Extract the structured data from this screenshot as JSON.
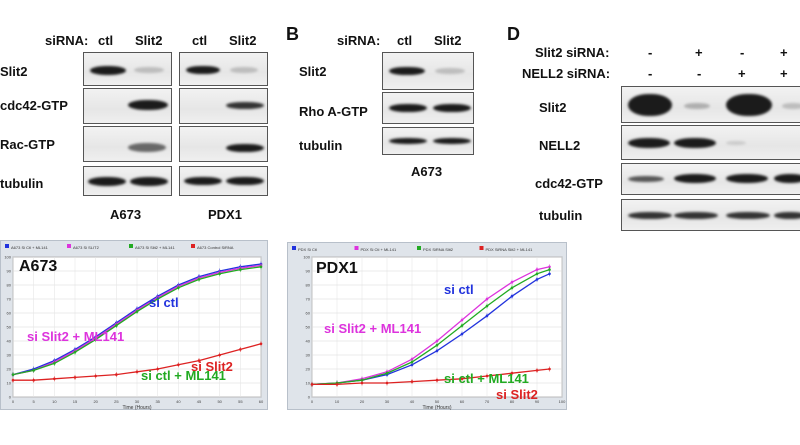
{
  "panelA": {
    "sirna_label": "siRNA:",
    "lanes": [
      "ctl",
      "Slit2",
      "ctl",
      "Slit2"
    ],
    "rows": [
      "Slit2",
      "cdc42-GTP",
      "Rac-GTP",
      "tubulin"
    ],
    "cell_lines": [
      "A673",
      "PDX1"
    ]
  },
  "panelB": {
    "letter": "B",
    "sirna_label": "siRNA:",
    "lanes": [
      "ctl",
      "Slit2"
    ],
    "rows": [
      "Slit2",
      "Rho A-GTP",
      "tubulin"
    ],
    "cell_line": "A673"
  },
  "panelD": {
    "letter": "D",
    "row1_label": "Slit2 siRNA:",
    "row1_values": [
      "-",
      "+",
      "-",
      "+"
    ],
    "row2_label": "NELL2 siRNA:",
    "row2_values": [
      "-",
      "-",
      "+",
      "+"
    ],
    "rows": [
      "Slit2",
      "NELL2",
      "cdc42-GTP",
      "tubulin"
    ]
  },
  "chart_data": [
    {
      "type": "line",
      "title": "A673",
      "legend": [
        "A673 Si Ctl + ML141",
        "A673 Si SLIT2",
        "A673 Si Slit2 + ML141",
        "A673 Control SiRNA"
      ],
      "xlabel": "Time (Hours)",
      "ylabel": "",
      "xlim": [
        0,
        60
      ],
      "ylim": [
        0,
        100
      ],
      "x_ticks": [
        "0",
        "5",
        "10",
        "15",
        "20",
        "25",
        "30",
        "35",
        "40",
        "45",
        "50",
        "55",
        "60"
      ],
      "y_ticks": [
        "0",
        "10",
        "20",
        "30",
        "40",
        "50",
        "60",
        "70",
        "80",
        "90",
        "100"
      ],
      "x": [
        0,
        5,
        10,
        15,
        20,
        25,
        30,
        35,
        40,
        45,
        50,
        55,
        60
      ],
      "series": [
        {
          "name": "si ctl",
          "color": "#2233dd",
          "values": [
            16,
            20,
            26,
            34,
            43,
            53,
            63,
            72,
            80,
            86,
            90,
            93,
            95
          ]
        },
        {
          "name": "si Slit2 + ML141",
          "color": "#dd33dd",
          "values": [
            16,
            19,
            25,
            33,
            42,
            52,
            62,
            71,
            79,
            85,
            89,
            92,
            94
          ]
        },
        {
          "name": "si ctl + ML141",
          "color": "#22aa22",
          "values": [
            16,
            19,
            24,
            32,
            41,
            51,
            61,
            70,
            78,
            84,
            88,
            91,
            93
          ]
        },
        {
          "name": "si Slit2",
          "color": "#dd2222",
          "values": [
            12,
            12,
            13,
            14,
            15,
            16,
            18,
            20,
            23,
            26,
            30,
            34,
            38
          ]
        }
      ],
      "annotations": [
        "si ctl",
        "si Slit2 + ML141",
        "si ctl + ML141",
        "si Slit2"
      ]
    },
    {
      "type": "line",
      "title": "PDX1",
      "legend": [
        "PDX Si Ctl",
        "PDX Si Ctl + ML141",
        "PDX SiRNA Slit2",
        "PDX SiRNA Slit2 + ML141"
      ],
      "xlabel": "Time (Hours)",
      "ylabel": "",
      "xlim": [
        0,
        100
      ],
      "ylim": [
        0,
        100
      ],
      "x_ticks": [
        "0",
        "10",
        "20",
        "30",
        "40",
        "50",
        "60",
        "70",
        "80",
        "90",
        "100"
      ],
      "y_ticks": [
        "0",
        "10",
        "20",
        "30",
        "40",
        "50",
        "60",
        "70",
        "80",
        "90",
        "100"
      ],
      "x": [
        0,
        10,
        20,
        30,
        40,
        50,
        60,
        70,
        80,
        90,
        95
      ],
      "series": [
        {
          "name": "si ctl",
          "color": "#2233dd",
          "values": [
            9,
            10,
            12,
            16,
            23,
            33,
            45,
            58,
            72,
            84,
            88
          ]
        },
        {
          "name": "si Slit2 + ML141",
          "color": "#dd33dd",
          "values": [
            9,
            10,
            13,
            18,
            27,
            40,
            55,
            70,
            82,
            91,
            93
          ]
        },
        {
          "name": "si ctl + ML141",
          "color": "#22aa22",
          "values": [
            9,
            10,
            12,
            17,
            25,
            37,
            51,
            65,
            78,
            88,
            91
          ]
        },
        {
          "name": "si Slit2",
          "color": "#dd2222",
          "values": [
            9,
            9,
            10,
            10,
            11,
            12,
            13,
            15,
            17,
            19,
            20
          ]
        }
      ],
      "annotations": [
        "si ctl",
        "si Slit2 + ML141",
        "si ctl + ML141",
        "si Slit2"
      ]
    }
  ]
}
